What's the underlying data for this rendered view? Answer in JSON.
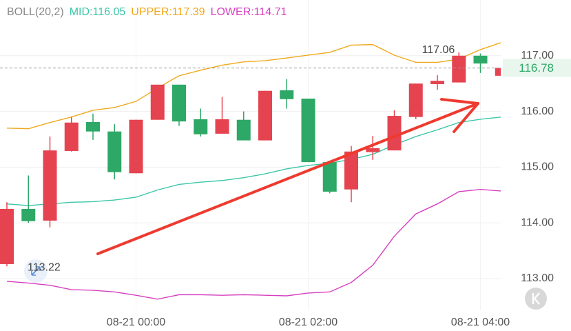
{
  "chart_data": {
    "type": "candlestick",
    "indicator": {
      "label": "BOLL(20,2)",
      "label_color": "#888888",
      "lines": [
        {
          "label": "MID:116.05",
          "color": "#3cc6a8",
          "values": [
            114.34,
            114.31,
            114.34,
            114.37,
            114.38,
            114.41,
            114.46,
            114.59,
            114.69,
            114.73,
            114.76,
            114.81,
            114.88,
            114.97,
            115.03,
            115.07,
            115.14,
            115.23,
            115.4,
            115.55,
            115.67,
            115.8,
            115.86,
            115.9
          ]
        },
        {
          "label": "UPPER:117.39",
          "color": "#f0a81c",
          "values": [
            115.7,
            115.69,
            115.8,
            115.9,
            116.02,
            116.07,
            116.18,
            116.42,
            116.64,
            116.74,
            116.83,
            116.89,
            116.91,
            116.96,
            117.01,
            117.06,
            117.19,
            117.2,
            117.01,
            116.88,
            116.88,
            116.94,
            117.11,
            117.24
          ]
        },
        {
          "label": "LOWER:114.71",
          "color": "#d63fbf",
          "values": [
            112.95,
            112.92,
            112.88,
            112.8,
            112.79,
            112.76,
            112.7,
            112.63,
            112.71,
            112.71,
            112.7,
            112.71,
            112.7,
            112.69,
            112.74,
            112.76,
            112.93,
            113.24,
            113.76,
            114.16,
            114.34,
            114.56,
            114.6,
            114.57
          ]
        }
      ]
    },
    "categories": [
      null,
      null,
      null,
      null,
      null,
      null,
      "08-21 00:00",
      null,
      null,
      null,
      null,
      null,
      null,
      null,
      "08-21 02:00",
      null,
      null,
      null,
      null,
      null,
      null,
      null,
      "08-21 04:00",
      null
    ],
    "open": [
      113.26,
      114.25,
      114.04,
      115.29,
      115.81,
      115.64,
      114.89,
      115.85,
      116.48,
      115.86,
      115.6,
      115.85,
      115.48,
      116.38,
      116.23,
      115.09,
      114.6,
      115.27,
      115.3,
      115.9,
      116.49,
      116.52,
      117.0,
      116.64
    ],
    "high": [
      114.37,
      114.85,
      115.55,
      115.9,
      115.96,
      115.77,
      115.85,
      116.48,
      116.48,
      116.05,
      116.26,
      116.0,
      116.37,
      116.58,
      116.23,
      115.09,
      115.38,
      115.56,
      116.02,
      116.5,
      116.65,
      117.06,
      117.04,
      116.8
    ],
    "low": [
      113.22,
      114.0,
      113.92,
      115.28,
      115.49,
      114.78,
      114.89,
      115.85,
      115.74,
      115.55,
      115.6,
      115.48,
      115.48,
      116.05,
      115.09,
      114.53,
      114.37,
      115.13,
      115.3,
      115.86,
      116.39,
      116.52,
      116.69,
      116.64
    ],
    "close": [
      114.25,
      114.03,
      115.3,
      115.8,
      115.64,
      114.91,
      115.85,
      116.48,
      115.82,
      115.59,
      115.86,
      115.48,
      116.37,
      116.22,
      115.09,
      114.56,
      115.28,
      115.34,
      115.92,
      116.5,
      116.55,
      117.0,
      116.86,
      116.78
    ],
    "up_color": "#e5434f",
    "down_color": "#2ea866",
    "ylim": [
      112.43,
      118.0
    ],
    "yticks": [
      {
        "value": 113,
        "label": "113.00"
      },
      {
        "value": 114,
        "label": "114.00"
      },
      {
        "value": 115,
        "label": "115.00"
      },
      {
        "value": 116,
        "label": "116.00"
      },
      {
        "value": 117,
        "label": "117.00"
      }
    ],
    "grid": true
  }
}
